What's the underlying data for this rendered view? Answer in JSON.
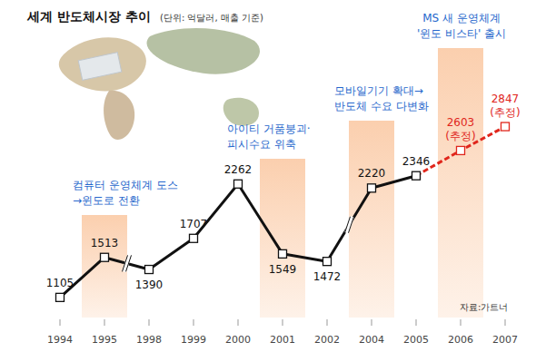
{
  "chart_data": {
    "type": "line",
    "title": "세계 반도체시장 추이",
    "subtitle": "(단위: 억달러, 매출 기준)",
    "source": "자료:가트너",
    "categories": [
      "1994",
      "1995",
      "1998",
      "1999",
      "2000",
      "2001",
      "2002",
      "2004",
      "2005",
      "2006",
      "2007"
    ],
    "series": [
      {
        "color": "#111111",
        "line_style": "solid",
        "marker": "square",
        "values": [
          1105,
          1513,
          1390,
          1707,
          2262,
          1549,
          1472,
          2220,
          2346,
          null,
          null
        ]
      },
      {
        "color": "#e0261c",
        "line_style": "dashed",
        "marker": "square",
        "values": [
          null,
          null,
          null,
          null,
          null,
          null,
          null,
          null,
          2346,
          2603,
          2847
        ],
        "value_labels": [
          null,
          null,
          null,
          null,
          null,
          null,
          null,
          null,
          null,
          "2603 (추정)",
          "2847 (추정)"
        ]
      }
    ],
    "annotations": [
      {
        "x": "1995",
        "text": "컴퓨터 운영체계 도스\n→윈도로 전환"
      },
      {
        "x": "2001",
        "text": "아이티 거품붕괴·\n피시수요 위축"
      },
      {
        "x": "2004",
        "text": "모바일기기 확대→\n반도체 수요 다변화"
      },
      {
        "x": "2006",
        "text": "MS 새 운영체계\n'윈도 비스타' 출시"
      }
    ],
    "ylim": [
      900,
      3000
    ],
    "data_labels": true,
    "tick_labels": "x",
    "grid": false
  }
}
